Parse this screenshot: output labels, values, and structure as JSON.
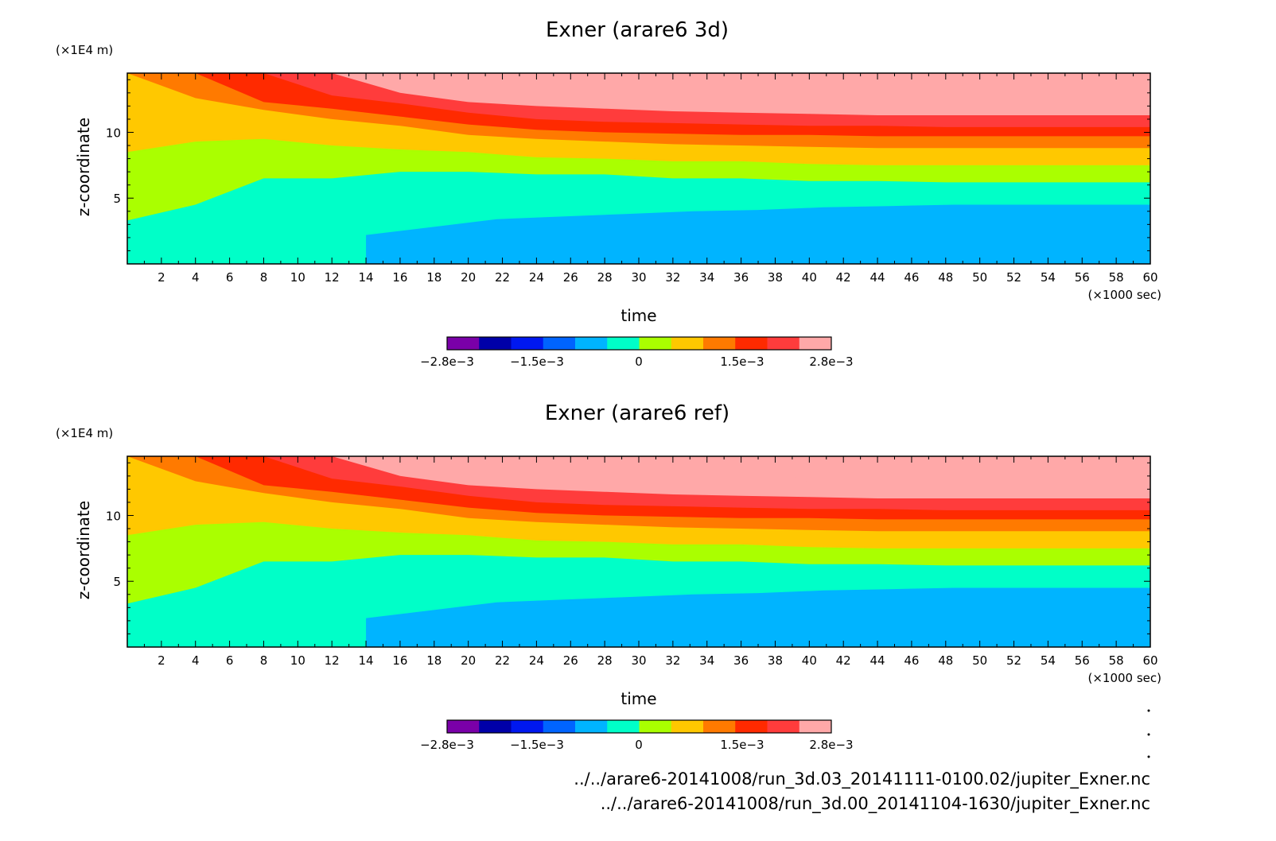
{
  "colors": {
    "levels": [
      "#7a00a8",
      "#0000a8",
      "#0018f0",
      "#0064ff",
      "#00b4ff",
      "#00ffc8",
      "#aaff00",
      "#ffc800",
      "#ff7a00",
      "#ff2a00",
      "#ff3c3c",
      "#ffa8a8"
    ]
  },
  "chart_data": [
    {
      "type": "heatmap",
      "title": "Exner (arare6 3d)",
      "xlabel": "time",
      "ylabel": "z-coordinate",
      "x_unit": "(×1000 sec)",
      "y_unit": "(×1E4 m)",
      "xlim": [
        0,
        60
      ],
      "ylim": [
        0,
        14.5
      ],
      "xticks": [
        "2",
        "4",
        "6",
        "8",
        "10",
        "12",
        "14",
        "16",
        "18",
        "20",
        "22",
        "24",
        "26",
        "28",
        "30",
        "32",
        "34",
        "36",
        "38",
        "40",
        "42",
        "44",
        "46",
        "48",
        "50",
        "52",
        "54",
        "56",
        "58",
        "60"
      ],
      "yticks": [
        "5",
        "10"
      ],
      "colorbar": {
        "range": [
          -0.0028,
          0.0028
        ],
        "labels": [
          "−2.8e−3",
          "−1.5e−3",
          "0",
          "1.5e−3",
          "2.8e−3"
        ]
      },
      "bands": [
        {
          "level": 5,
          "z_top": [
            3.3,
            4.5,
            6.5,
            6.5,
            7.0,
            7.0,
            6.8,
            6.8,
            6.5,
            6.5,
            6.3,
            6.3,
            6.2,
            6.2,
            6.2,
            6.2
          ]
        },
        {
          "level": 6,
          "z_top": [
            8.5,
            9.3,
            9.5,
            9.0,
            8.7,
            8.5,
            8.1,
            8.0,
            7.8,
            7.8,
            7.6,
            7.5,
            7.5,
            7.5,
            7.5,
            7.5
          ]
        },
        {
          "level": 7,
          "z_top": [
            14.5,
            12.6,
            11.7,
            11.0,
            10.5,
            9.8,
            9.5,
            9.3,
            9.1,
            9.0,
            8.9,
            8.8,
            8.8,
            8.8,
            8.8,
            8.8
          ]
        },
        {
          "level": 8,
          "z_top": [
            14.5,
            14.5,
            12.3,
            11.8,
            11.2,
            10.6,
            10.2,
            10.0,
            9.9,
            9.8,
            9.8,
            9.7,
            9.7,
            9.7,
            9.7,
            9.7
          ]
        },
        {
          "level": 9,
          "z_top": [
            14.5,
            14.5,
            14.5,
            12.8,
            12.2,
            11.5,
            11.0,
            10.8,
            10.7,
            10.6,
            10.5,
            10.5,
            10.4,
            10.4,
            10.4,
            10.4
          ]
        },
        {
          "level": 10,
          "z_top": [
            14.5,
            14.5,
            14.5,
            14.5,
            13.0,
            12.3,
            12.0,
            11.8,
            11.6,
            11.5,
            11.4,
            11.3,
            11.3,
            11.3,
            11.3,
            11.3
          ]
        },
        {
          "level": 11,
          "z_top": [
            14.5,
            14.5,
            14.5,
            14.5,
            14.5,
            14.5,
            14.5,
            14.5,
            14.5,
            12.6,
            12.3,
            12.2,
            12.1,
            12.0,
            12.0,
            12.0
          ]
        }
      ],
      "low_region": {
        "level": 4,
        "x_start": 14,
        "z_top": [
          2.2,
          2.8,
          3.4,
          3.6,
          3.8,
          4.0,
          4.1,
          4.3,
          4.4,
          4.5,
          4.5,
          4.5,
          4.5
        ]
      }
    },
    {
      "type": "heatmap",
      "title": "Exner (arare6 ref)",
      "xlabel": "time",
      "ylabel": "z-coordinate",
      "x_unit": "(×1000 sec)",
      "y_unit": "(×1E4 m)",
      "xlim": [
        0,
        60
      ],
      "ylim": [
        0,
        14.5
      ],
      "xticks": [
        "2",
        "4",
        "6",
        "8",
        "10",
        "12",
        "14",
        "16",
        "18",
        "20",
        "22",
        "24",
        "26",
        "28",
        "30",
        "32",
        "34",
        "36",
        "38",
        "40",
        "42",
        "44",
        "46",
        "48",
        "50",
        "52",
        "54",
        "56",
        "58",
        "60"
      ],
      "yticks": [
        "5",
        "10"
      ],
      "colorbar": {
        "range": [
          -0.0028,
          0.0028
        ],
        "labels": [
          "−2.8e−3",
          "−1.5e−3",
          "0",
          "1.5e−3",
          "2.8e−3"
        ]
      },
      "bands": [
        {
          "level": 5,
          "z_top": [
            3.3,
            4.5,
            6.5,
            6.5,
            7.0,
            7.0,
            6.8,
            6.8,
            6.5,
            6.5,
            6.3,
            6.3,
            6.2,
            6.2,
            6.2,
            6.2
          ]
        },
        {
          "level": 6,
          "z_top": [
            8.5,
            9.3,
            9.5,
            9.0,
            8.7,
            8.5,
            8.1,
            8.0,
            7.8,
            7.8,
            7.6,
            7.5,
            7.5,
            7.5,
            7.5,
            7.5
          ]
        },
        {
          "level": 7,
          "z_top": [
            14.5,
            12.6,
            11.7,
            11.0,
            10.5,
            9.8,
            9.5,
            9.3,
            9.1,
            9.0,
            8.9,
            8.8,
            8.8,
            8.8,
            8.8,
            8.8
          ]
        },
        {
          "level": 8,
          "z_top": [
            14.5,
            14.5,
            12.3,
            11.8,
            11.2,
            10.6,
            10.2,
            10.0,
            9.9,
            9.8,
            9.8,
            9.7,
            9.7,
            9.7,
            9.7,
            9.7
          ]
        },
        {
          "level": 9,
          "z_top": [
            14.5,
            14.5,
            14.5,
            12.8,
            12.2,
            11.5,
            11.0,
            10.8,
            10.7,
            10.6,
            10.5,
            10.5,
            10.4,
            10.4,
            10.4,
            10.4
          ]
        },
        {
          "level": 10,
          "z_top": [
            14.5,
            14.5,
            14.5,
            14.5,
            13.0,
            12.3,
            12.0,
            11.8,
            11.6,
            11.5,
            11.4,
            11.3,
            11.3,
            11.3,
            11.3,
            11.3
          ]
        },
        {
          "level": 11,
          "z_top": [
            14.5,
            14.5,
            14.5,
            14.5,
            14.5,
            14.5,
            14.5,
            14.5,
            14.5,
            14.5,
            12.5,
            12.2,
            12.0,
            12.0,
            12.0,
            12.0
          ]
        }
      ],
      "low_region": {
        "level": 4,
        "x_start": 14,
        "z_top": [
          2.2,
          2.8,
          3.4,
          3.6,
          3.8,
          4.0,
          4.1,
          4.3,
          4.4,
          4.5,
          4.5,
          4.5,
          4.5
        ]
      }
    }
  ],
  "file_paths": [
    "../../arare6-20141008/run_3d.03_20141111-0100.02/jupiter_Exner.nc",
    "../../arare6-20141008/run_3d.00_20141104-1630/jupiter_Exner.nc"
  ]
}
